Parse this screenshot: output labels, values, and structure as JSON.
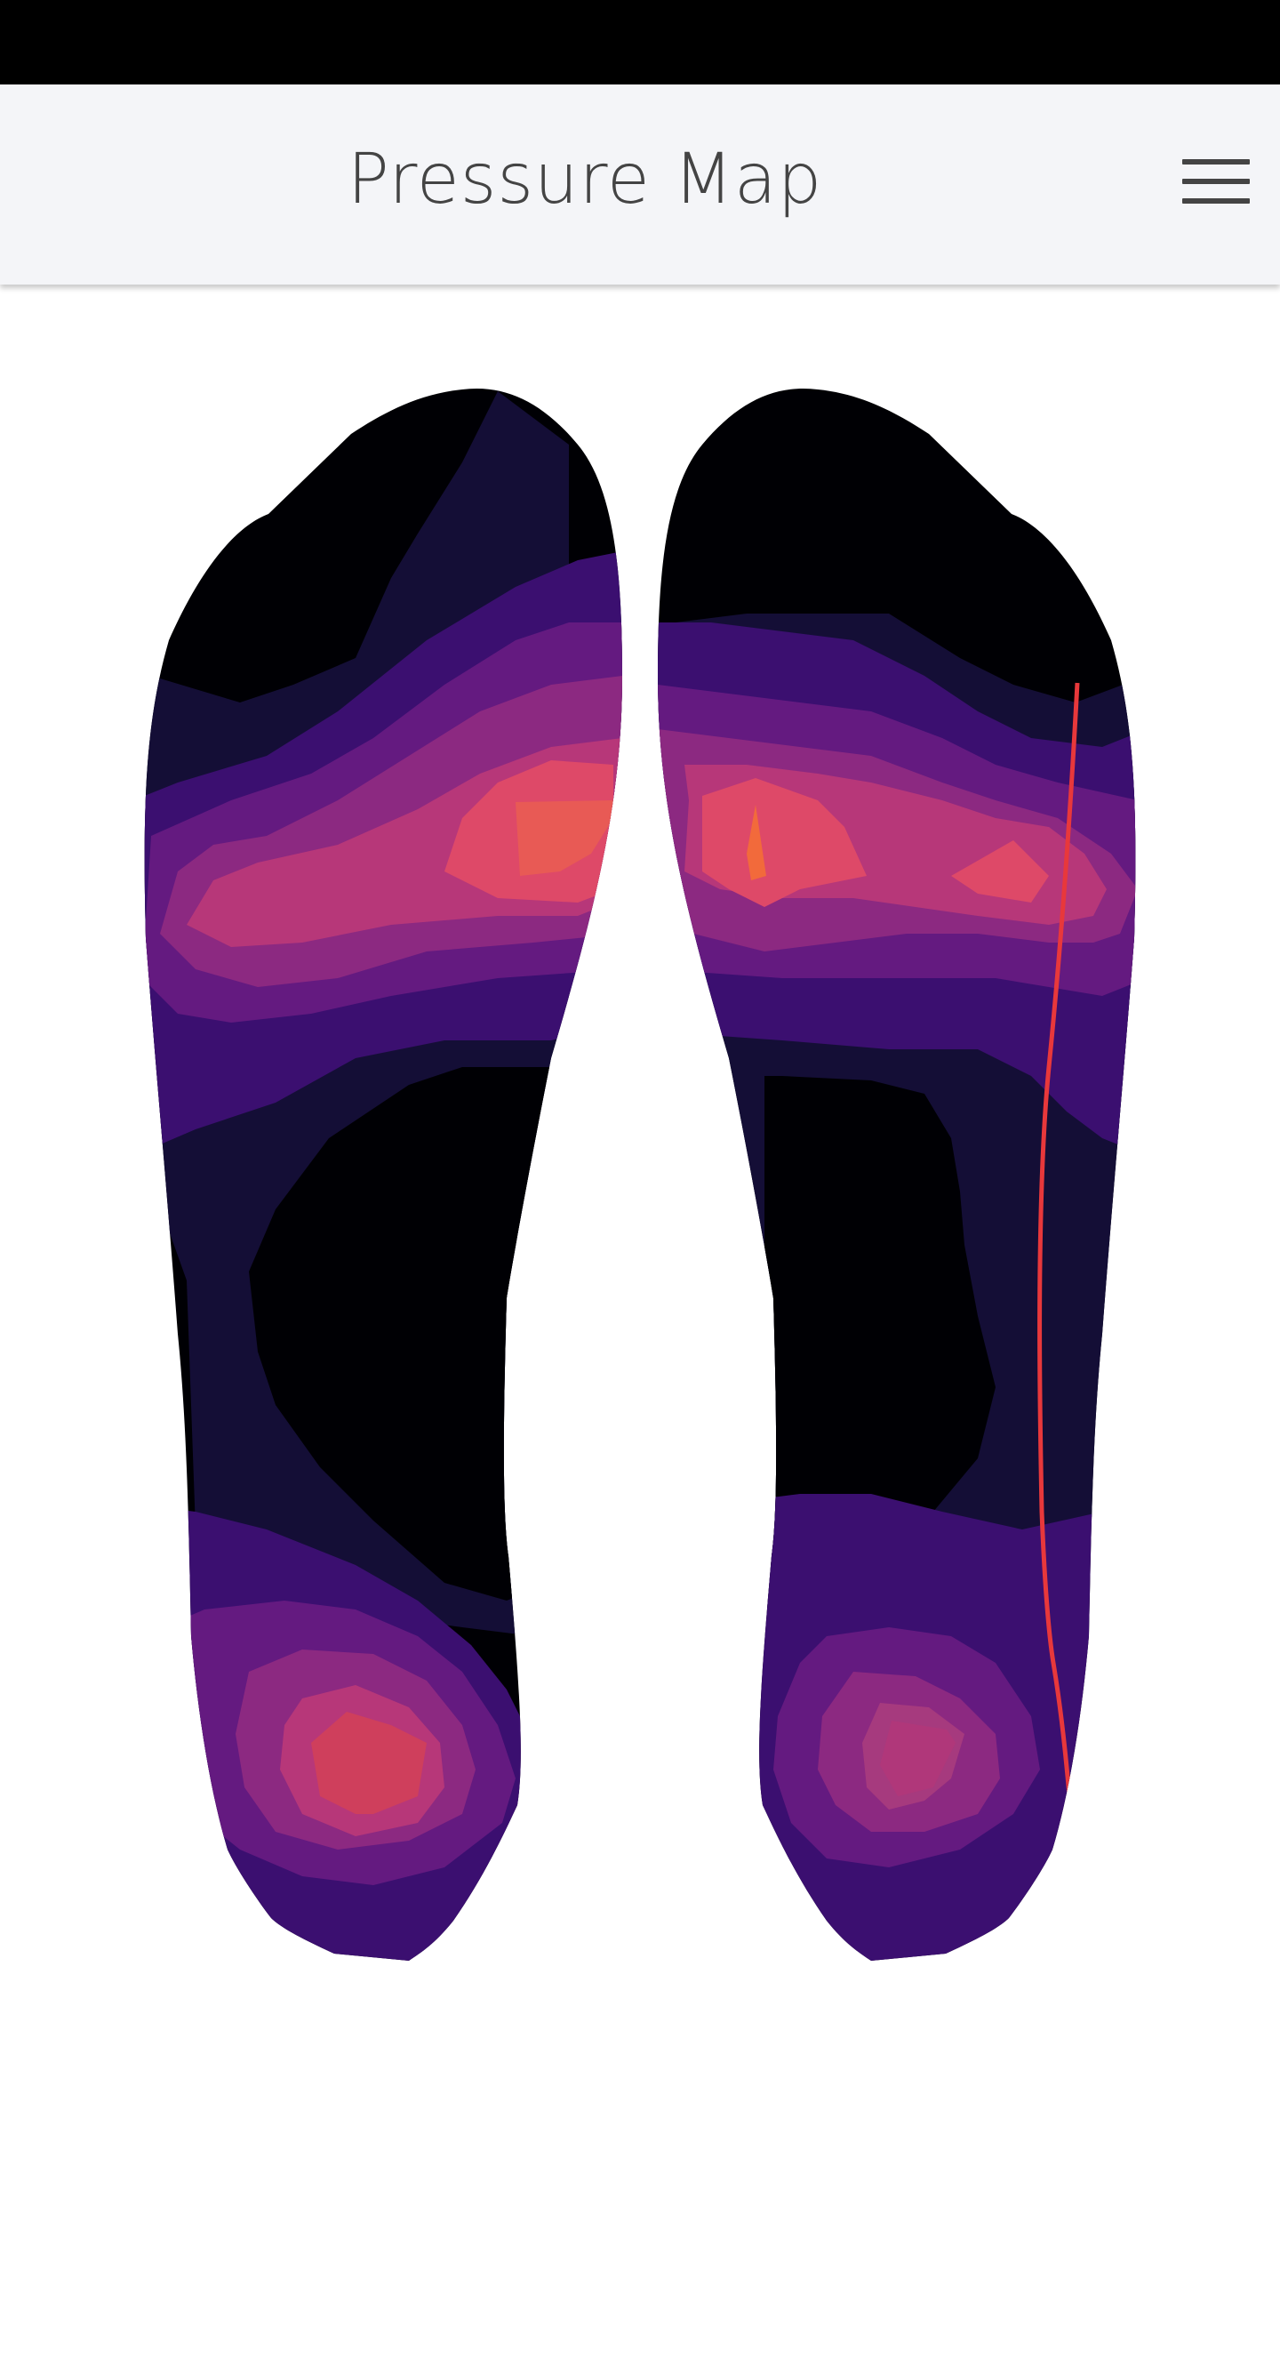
{
  "header": {
    "title": "Pressure Map",
    "menu_icon": "hamburger-menu-icon"
  },
  "pressure_map": {
    "feet": [
      "left",
      "right"
    ],
    "colormap": [
      "#000004",
      "#140e36",
      "#3b0f70",
      "#641a80",
      "#8c2981",
      "#b73779",
      "#de4968",
      "#f7705c",
      "#fe9f6d"
    ],
    "trace_color": "#e8383b"
  },
  "colors": {
    "status_bar": "#000000",
    "header_background": "#f4f5f8",
    "title_text": "#444444",
    "page_background": "#ffffff"
  }
}
